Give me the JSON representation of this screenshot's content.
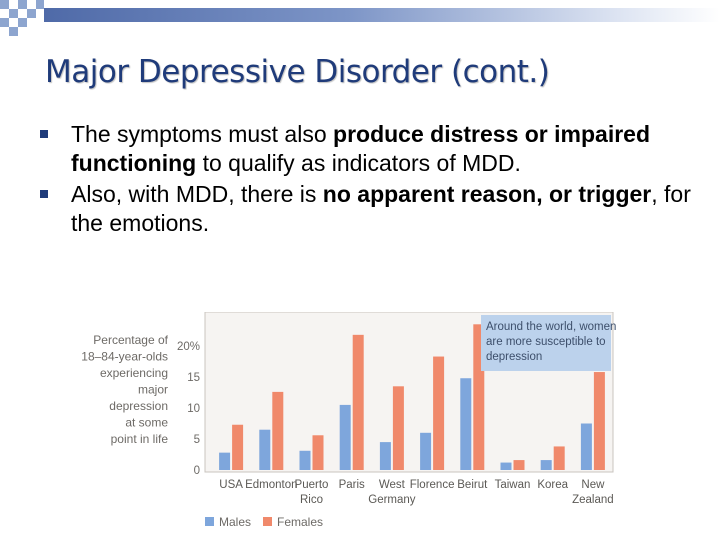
{
  "slide": {
    "title": "Major Depressive Disorder (cont.)",
    "bullets": [
      {
        "parts": [
          {
            "text": "The symptoms must also ",
            "bold": false
          },
          {
            "text": "produce distress or impaired functioning",
            "bold": true
          },
          {
            "text": " to qualify as indicators of MDD.",
            "bold": false
          }
        ]
      },
      {
        "parts": [
          {
            "text": "Also, with MDD, there is ",
            "bold": false
          },
          {
            "text": "no apparent reason, or trigger",
            "bold": true
          },
          {
            "text": ", for the emotions.",
            "bold": false
          }
        ]
      }
    ]
  },
  "colors": {
    "title": "#1f3b7a",
    "accent_bar": "#4f6aa8",
    "males": "#7ea6dc",
    "females": "#f0896b",
    "callout_bg": "#bcd2ec",
    "chart_bg": "#f6f4f2"
  },
  "chart_data": {
    "type": "bar",
    "ylabel": "Percentage of 18–84-year-olds experiencing major depression at some point in life",
    "ylabel_lines": [
      "Percentage of",
      "18–84-year-olds",
      "experiencing",
      "major",
      "depression",
      "at some",
      "point in life"
    ],
    "ylim": [
      0,
      25
    ],
    "yticks": [
      0,
      5,
      10,
      15,
      20
    ],
    "ytick_labels": [
      "0",
      "5",
      "10",
      "15",
      "20%"
    ],
    "categories": [
      "USA",
      "Edmonton",
      "Puerto Rico",
      "Paris",
      "West Germany",
      "Florence",
      "Beirut",
      "Taiwan",
      "Korea",
      "New Zealand"
    ],
    "category_lines": [
      [
        "USA"
      ],
      [
        "Edmonton"
      ],
      [
        "Puerto",
        "Rico"
      ],
      [
        "Paris"
      ],
      [
        "West",
        "Germany"
      ],
      [
        "Florence"
      ],
      [
        "Beirut"
      ],
      [
        "Taiwan"
      ],
      [
        "Korea"
      ],
      [
        "New",
        "Zealand"
      ]
    ],
    "series": [
      {
        "name": "Males",
        "values": [
          2.8,
          6.5,
          3.1,
          10.5,
          4.5,
          6.0,
          14.8,
          1.2,
          1.6,
          7.5
        ]
      },
      {
        "name": "Females",
        "values": [
          7.3,
          12.6,
          5.6,
          21.8,
          13.5,
          18.3,
          23.5,
          1.6,
          3.8,
          15.8
        ]
      }
    ],
    "annotation_lines": [
      "Around the world, women",
      "are more susceptible to",
      "depression"
    ],
    "legend_position": "bottom",
    "grid": false
  }
}
